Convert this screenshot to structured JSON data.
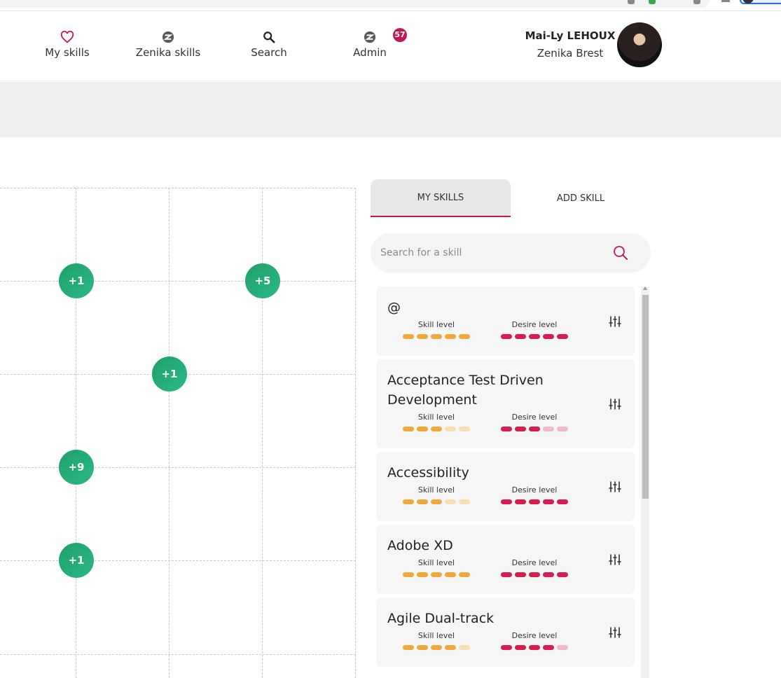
{
  "nav": {
    "items": [
      {
        "label": "My skills",
        "icon": "heart-icon"
      },
      {
        "label": "Zenika skills",
        "icon": "zenika-logo-icon"
      },
      {
        "label": "Search",
        "icon": "search-icon"
      },
      {
        "label": "Admin",
        "icon": "zenika-logo-icon"
      }
    ],
    "admin_badge": "57"
  },
  "user": {
    "name": "Mai-Ly LEHOUX",
    "agency": "Zenika Brest"
  },
  "grid": {
    "bubbles": [
      "+1",
      "+5",
      "+1",
      "+9",
      "+1"
    ]
  },
  "tabs": [
    {
      "label": "MY SKILLS",
      "active": true
    },
    {
      "label": "ADD SKILL",
      "active": false
    }
  ],
  "search": {
    "placeholder": "Search for a skill",
    "value": ""
  },
  "skill_level_label": "Skill level",
  "desire_level_label": "Desire level",
  "colors": {
    "skill": "#f2a93b",
    "skill_dim": "#f7dfb5",
    "desire": "#d81b50",
    "desire_dim": "#f2b9c9",
    "accent": "#c2185b",
    "bubble": "#1fa06a"
  },
  "skills": [
    {
      "name": "@",
      "skill_level": 5,
      "desire_level": 5
    },
    {
      "name": "Acceptance Test Driven Development",
      "skill_level": 3,
      "desire_level": 3
    },
    {
      "name": "Accessibility",
      "skill_level": 3,
      "desire_level": 5
    },
    {
      "name": "Adobe XD",
      "skill_level": 5,
      "desire_level": 5
    },
    {
      "name": "Agile Dual-track",
      "skill_level": 4,
      "desire_level": 4
    }
  ]
}
